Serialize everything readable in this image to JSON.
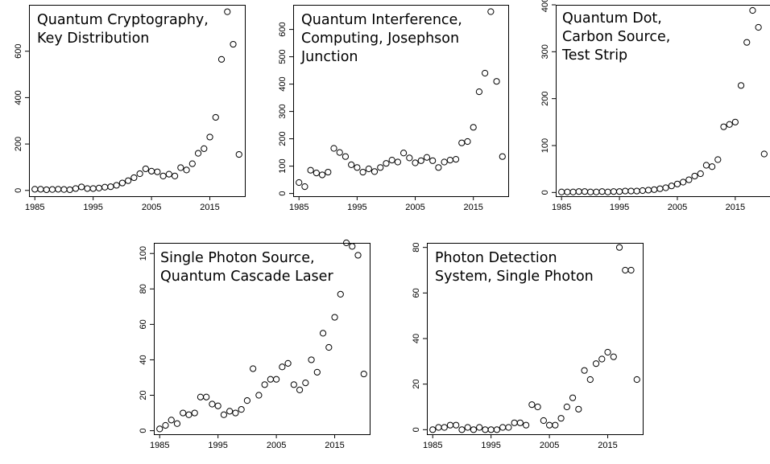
{
  "figure": {
    "chart_data": [
      {
        "type": "scatter",
        "title": "Quantum Cryptography,\nKey Distribution",
        "xticks": [
          "1985",
          "1995",
          "2005",
          "2015"
        ],
        "yticks": [
          "0",
          "200",
          "400",
          "600"
        ],
        "xlim": [
          1984,
          2021
        ],
        "ylim": [
          -25,
          800
        ],
        "x": [
          1985,
          1986,
          1987,
          1988,
          1989,
          1990,
          1991,
          1992,
          1993,
          1994,
          1995,
          1996,
          1997,
          1998,
          1999,
          2000,
          2001,
          2002,
          2003,
          2004,
          2005,
          2006,
          2007,
          2008,
          2009,
          2010,
          2011,
          2012,
          2013,
          2014,
          2015,
          2016,
          2017,
          2018,
          2019,
          2020
        ],
        "y": [
          5,
          5,
          3,
          4,
          5,
          4,
          3,
          8,
          15,
          8,
          8,
          10,
          14,
          16,
          22,
          32,
          42,
          55,
          72,
          93,
          83,
          80,
          62,
          70,
          62,
          98,
          88,
          115,
          160,
          180,
          230,
          315,
          565,
          770,
          630,
          155
        ]
      },
      {
        "type": "scatter",
        "title": "Quantum Interference,\nComputing, Josephson\nJunction",
        "xticks": [
          "1985",
          "1995",
          "2005",
          "2015"
        ],
        "yticks": [
          "0",
          "100",
          "200",
          "300",
          "400",
          "500",
          "600"
        ],
        "xlim": [
          1984,
          2021
        ],
        "ylim": [
          -10,
          690
        ],
        "x": [
          1985,
          1986,
          1987,
          1988,
          1989,
          1990,
          1991,
          1992,
          1993,
          1994,
          1995,
          1996,
          1997,
          1998,
          1999,
          2000,
          2001,
          2002,
          2003,
          2004,
          2005,
          2006,
          2007,
          2008,
          2009,
          2010,
          2011,
          2012,
          2013,
          2014,
          2015,
          2016,
          2017,
          2018,
          2019,
          2020
        ],
        "y": [
          40,
          25,
          85,
          75,
          68,
          78,
          165,
          150,
          135,
          105,
          95,
          78,
          90,
          80,
          95,
          110,
          122,
          115,
          148,
          130,
          112,
          120,
          132,
          120,
          95,
          115,
          122,
          125,
          185,
          190,
          242,
          372,
          440,
          665,
          410,
          135
        ]
      },
      {
        "type": "scatter",
        "title": "Quantum Dot,\nCarbon Source,\nTest Strip",
        "xticks": [
          "1985",
          "1995",
          "2005",
          "2015"
        ],
        "yticks": [
          "0",
          "100",
          "200",
          "300",
          "400"
        ],
        "xlim": [
          1984,
          2021
        ],
        "ylim": [
          -8,
          400
        ],
        "x": [
          1985,
          1986,
          1987,
          1988,
          1989,
          1990,
          1991,
          1992,
          1993,
          1994,
          1995,
          1996,
          1997,
          1998,
          1999,
          2000,
          2001,
          2002,
          2003,
          2004,
          2005,
          2006,
          2007,
          2008,
          2009,
          2010,
          2011,
          2012,
          2013,
          2014,
          2015,
          2016,
          2017,
          2018,
          2019,
          2020
        ],
        "y": [
          1,
          1,
          1,
          2,
          2,
          1,
          1,
          2,
          1,
          2,
          2,
          3,
          3,
          3,
          4,
          5,
          6,
          8,
          10,
          14,
          18,
          22,
          27,
          35,
          40,
          58,
          55,
          70,
          140,
          145,
          150,
          228,
          320,
          388,
          352,
          82
        ]
      },
      {
        "type": "scatter",
        "title": "Single Photon Source,\nQuantum Cascade Laser",
        "xticks": [
          "1985",
          "1995",
          "2005",
          "2015"
        ],
        "yticks": [
          "0",
          "20",
          "40",
          "60",
          "80",
          "100"
        ],
        "xlim": [
          1984,
          2021
        ],
        "ylim": [
          -2,
          106
        ],
        "x": [
          1985,
          1986,
          1987,
          1988,
          1989,
          1990,
          1991,
          1992,
          1993,
          1994,
          1995,
          1996,
          1997,
          1998,
          1999,
          2000,
          2001,
          2002,
          2003,
          2004,
          2005,
          2006,
          2007,
          2008,
          2009,
          2010,
          2011,
          2012,
          2013,
          2014,
          2015,
          2016,
          2017,
          2018,
          2019,
          2020
        ],
        "y": [
          1,
          3,
          6,
          4,
          10,
          9,
          10,
          19,
          19,
          15,
          14,
          9,
          11,
          10,
          12,
          17,
          35,
          20,
          26,
          29,
          29,
          36,
          38,
          26,
          23,
          27,
          40,
          33,
          55,
          47,
          64,
          77,
          106,
          104,
          99,
          32
        ]
      },
      {
        "type": "scatter",
        "title": "Photon Detection\nSystem, Single Photon",
        "xticks": [
          "1985",
          "1995",
          "2005",
          "2015"
        ],
        "yticks": [
          "0",
          "20",
          "40",
          "60",
          "80"
        ],
        "xlim": [
          1984,
          2021
        ],
        "ylim": [
          -2,
          82
        ],
        "x": [
          1985,
          1986,
          1987,
          1988,
          1989,
          1990,
          1991,
          1992,
          1993,
          1994,
          1995,
          1996,
          1997,
          1998,
          1999,
          2000,
          2001,
          2002,
          2003,
          2004,
          2005,
          2006,
          2007,
          2008,
          2009,
          2010,
          2011,
          2012,
          2013,
          2014,
          2015,
          2016,
          2017,
          2018,
          2019,
          2020
        ],
        "y": [
          0,
          1,
          1,
          2,
          2,
          0,
          1,
          0,
          1,
          0,
          0,
          0,
          1,
          1,
          3,
          3,
          2,
          11,
          10,
          4,
          2,
          2,
          5,
          10,
          14,
          9,
          26,
          22,
          29,
          31,
          34,
          32,
          80,
          70,
          70,
          22
        ]
      }
    ]
  }
}
